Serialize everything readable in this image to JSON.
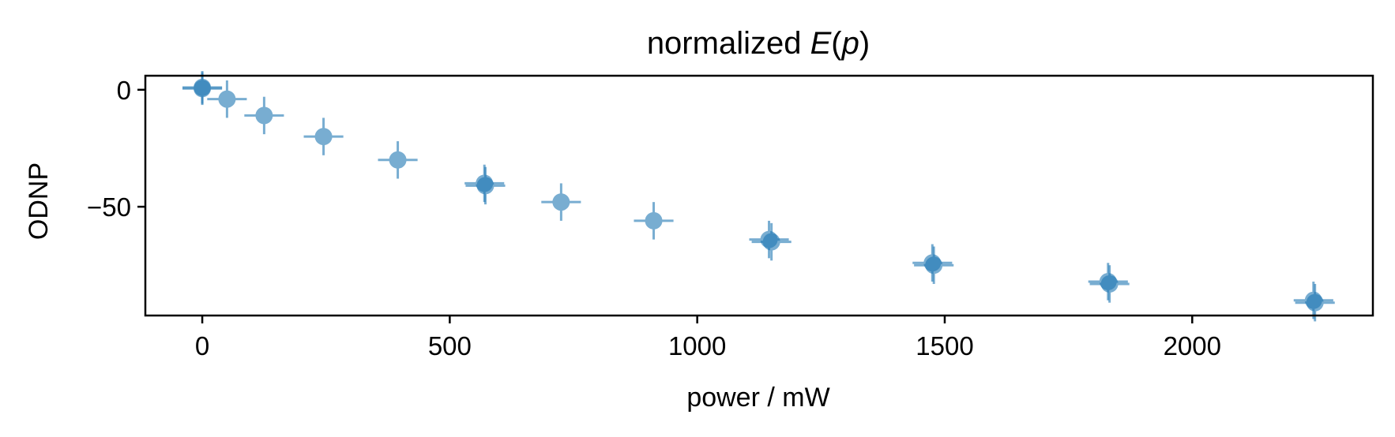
{
  "chart_data": {
    "type": "scatter",
    "title": {
      "prefix": "normalized ",
      "italic_E": "E",
      "open": "(",
      "italic_p": "p",
      "close": ")"
    },
    "xlabel": "power / mW",
    "ylabel": "ODNP",
    "xlim": [
      -115,
      2365
    ],
    "ylim": [
      -96.5,
      6
    ],
    "xticks": [
      {
        "value": 0,
        "label": "0"
      },
      {
        "value": 500,
        "label": "500"
      },
      {
        "value": 1000,
        "label": "1000"
      },
      {
        "value": 1500,
        "label": "1500"
      },
      {
        "value": 2000,
        "label": "2000"
      }
    ],
    "yticks": [
      {
        "value": 0,
        "label": "0"
      },
      {
        "value": -50,
        "label": "−50"
      }
    ],
    "grid": false,
    "marker_color": "#1f77b4",
    "points": [
      {
        "x": 0,
        "y": 1,
        "xerr": 40,
        "yerr": 7
      },
      {
        "x": 0,
        "y": 0.5,
        "xerr": 40,
        "yerr": 7
      },
      {
        "x": 50,
        "y": -4,
        "xerr": 40,
        "yerr": 8
      },
      {
        "x": 125,
        "y": -11,
        "xerr": 40,
        "yerr": 8
      },
      {
        "x": 245,
        "y": -20,
        "xerr": 40,
        "yerr": 8
      },
      {
        "x": 395,
        "y": -30,
        "xerr": 40,
        "yerr": 8
      },
      {
        "x": 570,
        "y": -40,
        "xerr": 40,
        "yerr": 8
      },
      {
        "x": 572,
        "y": -41,
        "xerr": 40,
        "yerr": 8
      },
      {
        "x": 725,
        "y": -48,
        "xerr": 40,
        "yerr": 8
      },
      {
        "x": 912,
        "y": -56,
        "xerr": 40,
        "yerr": 8
      },
      {
        "x": 1145,
        "y": -64,
        "xerr": 40,
        "yerr": 8
      },
      {
        "x": 1150,
        "y": -65,
        "xerr": 40,
        "yerr": 8
      },
      {
        "x": 1475,
        "y": -74,
        "xerr": 40,
        "yerr": 8
      },
      {
        "x": 1478,
        "y": -75,
        "xerr": 40,
        "yerr": 8
      },
      {
        "x": 1830,
        "y": -82,
        "xerr": 40,
        "yerr": 8
      },
      {
        "x": 1833,
        "y": -83,
        "xerr": 40,
        "yerr": 8
      },
      {
        "x": 2245,
        "y": -90,
        "xerr": 40,
        "yerr": 8
      },
      {
        "x": 2248,
        "y": -91,
        "xerr": 40,
        "yerr": 8
      }
    ]
  }
}
